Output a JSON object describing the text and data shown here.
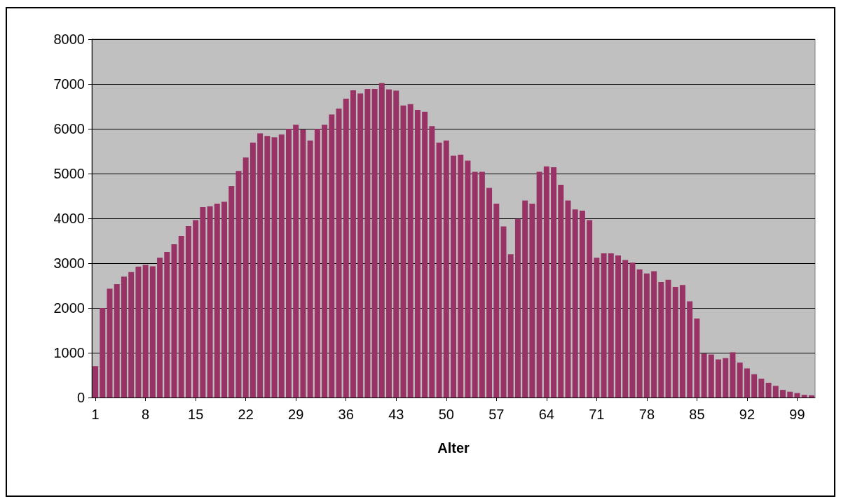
{
  "chart_data": {
    "type": "bar",
    "xlabel": "Alter",
    "categories": [
      "1",
      null,
      null,
      null,
      null,
      null,
      null,
      "8",
      null,
      null,
      null,
      null,
      null,
      null,
      "15",
      null,
      null,
      null,
      null,
      null,
      null,
      "22",
      null,
      null,
      null,
      null,
      null,
      null,
      "29",
      null,
      null,
      null,
      null,
      null,
      null,
      "36",
      null,
      null,
      null,
      null,
      null,
      null,
      "43",
      null,
      null,
      null,
      null,
      null,
      null,
      "50",
      null,
      null,
      null,
      null,
      null,
      null,
      "57",
      null,
      null,
      null,
      null,
      null,
      null,
      "64",
      null,
      null,
      null,
      null,
      null,
      null,
      "71",
      null,
      null,
      null,
      null,
      null,
      null,
      "78",
      null,
      null,
      null,
      null,
      null,
      null,
      "85",
      null,
      null,
      null,
      null,
      null,
      null,
      "92",
      null,
      null,
      null,
      null,
      null,
      null,
      "99",
      null,
      null
    ],
    "values": [
      700,
      2000,
      2430,
      2530,
      2700,
      2800,
      2920,
      2960,
      2930,
      3120,
      3250,
      3420,
      3610,
      3830,
      3960,
      4250,
      4270,
      4330,
      4370,
      4720,
      5060,
      5360,
      5690,
      5900,
      5840,
      5810,
      5870,
      6000,
      6090,
      5980,
      5740,
      6000,
      6090,
      6320,
      6450,
      6670,
      6860,
      6790,
      6890,
      6890,
      7020,
      6880,
      6850,
      6520,
      6550,
      6420,
      6380,
      6060,
      5690,
      5740,
      5400,
      5420,
      5290,
      5040,
      5040,
      4680,
      4330,
      3820,
      3200,
      3990,
      4400,
      4330,
      5040,
      5160,
      5140,
      4750,
      4400,
      4200,
      4170,
      3960,
      3120,
      3220,
      3220,
      3170,
      3070,
      3010,
      2860,
      2770,
      2820,
      2580,
      2630,
      2470,
      2510,
      2150,
      1760,
      980,
      960,
      850,
      880,
      1010,
      780,
      650,
      520,
      420,
      330,
      260,
      170,
      130,
      100,
      60,
      50
    ],
    "color": "#993366",
    "ylim": [
      0,
      8000
    ],
    "yticks": [
      0,
      1000,
      2000,
      3000,
      4000,
      5000,
      6000,
      7000,
      8000
    ],
    "grid": "y"
  }
}
